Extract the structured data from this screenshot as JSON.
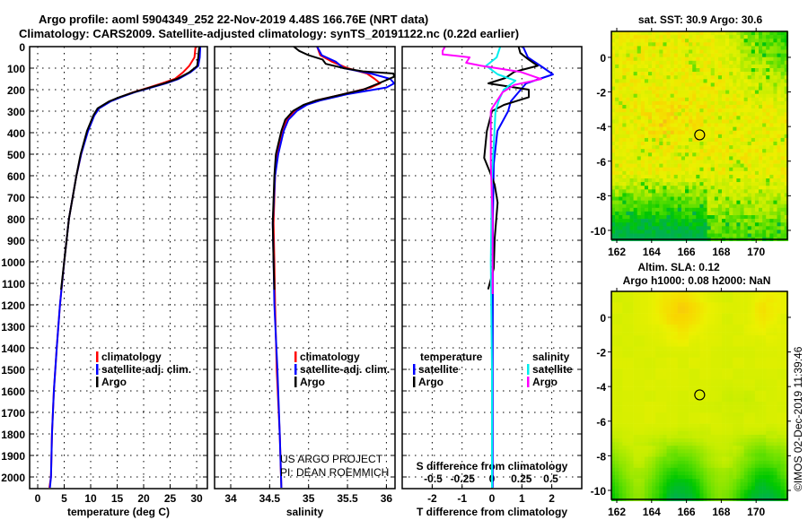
{
  "title": {
    "line1": "Argo profile: aoml 5904349_252 22-Nov-2019 4.48S 166.76E (NRT data)",
    "line2": "Climatology: CARS2009. Satellite-adjusted climatology: synTS_20191122.nc (0.22d earlier)"
  },
  "depth_ticks": [
    0,
    100,
    200,
    300,
    400,
    500,
    600,
    700,
    800,
    900,
    1000,
    1100,
    1200,
    1300,
    1400,
    1500,
    1600,
    1700,
    1800,
    1900,
    2000
  ],
  "credits": {
    "line1": "US ARGO PROJECT",
    "line2": "PI: DEAN ROEMMICH"
  },
  "timestamp": "©IMOS 02-Dec-2019 11:39:46",
  "colors": {
    "climatology": "#ff0000",
    "satellite": "#0000ff",
    "argo": "#000000",
    "sal_satellite": "#00eeee",
    "sal_argo": "#ff00ff"
  },
  "chart_data": [
    {
      "type": "line",
      "xlabel": "temperature (deg C)",
      "ylabel": "depth",
      "x_ticks": [
        0,
        5,
        10,
        15,
        20,
        25,
        30
      ],
      "xlim": [
        -1.5,
        32
      ],
      "ylim": [
        2055,
        0
      ],
      "grid": true,
      "legend_placement": "lower-right",
      "series": [
        {
          "name": "climatology",
          "color": "#ff0000",
          "depth": [
            0,
            50,
            90,
            120,
            150,
            170,
            190,
            212,
            235,
            254,
            287,
            320,
            392,
            500,
            600,
            800,
            1000,
            1200,
            1400,
            1600,
            1800,
            2000,
            2050
          ],
          "values": [
            29.8,
            29.6,
            28.6,
            27.4,
            25.9,
            23.5,
            21,
            18,
            15.5,
            13.6,
            11.4,
            10.6,
            9.4,
            8.2,
            7.3,
            5.9,
            5.0,
            4.2,
            3.6,
            3.05,
            2.7,
            2.5,
            2.2
          ]
        },
        {
          "name": "satellite-adj. clim.",
          "color": "#0000ff",
          "depth": [
            0,
            50,
            90,
            120,
            150,
            170,
            190,
            212,
            235,
            254,
            287,
            320,
            392,
            500,
            600,
            800,
            1000,
            1200,
            1400,
            1600,
            1800,
            2000,
            2050
          ],
          "values": [
            30.7,
            30.6,
            30.3,
            28.8,
            26.6,
            24.3,
            21.5,
            18.3,
            15.7,
            13.8,
            11.6,
            10.7,
            9.5,
            8.2,
            7.3,
            5.9,
            5.0,
            4.2,
            3.6,
            3.05,
            2.7,
            2.5,
            2.3
          ]
        },
        {
          "name": "Argo",
          "color": "#000000",
          "depth": [
            0,
            50,
            90,
            120,
            150,
            170,
            190,
            212,
            235,
            254,
            287,
            320,
            392,
            500,
            600,
            800,
            1000,
            1130
          ],
          "values": [
            30.5,
            30.3,
            30.1,
            28.6,
            26.3,
            24,
            21.2,
            18.1,
            15.4,
            13.5,
            11.3,
            10.5,
            9.3,
            8.1,
            7.3,
            5.9,
            5.0,
            4.4
          ]
        }
      ]
    },
    {
      "type": "line",
      "xlabel": "salinity",
      "ylabel": "depth",
      "x_ticks": [
        34,
        34.5,
        35,
        35.5,
        36
      ],
      "xlim": [
        33.8,
        36.1
      ],
      "ylim": [
        2055,
        0
      ],
      "grid": true,
      "legend_placement": "lower-right",
      "series": [
        {
          "name": "climatology",
          "color": "#ff0000",
          "depth": [
            0,
            40,
            70,
            100,
            125,
            150,
            171,
            190,
            221,
            250,
            270,
            299,
            340,
            392,
            500,
            600,
            820,
            1000,
            1200,
            1500,
            1800,
            2050
          ],
          "values": [
            35.11,
            35.15,
            35.3,
            35.5,
            35.75,
            35.85,
            35.92,
            35.8,
            35.45,
            35.1,
            34.95,
            34.82,
            34.72,
            34.67,
            34.6,
            34.57,
            34.55,
            34.56,
            34.57,
            34.59,
            34.63,
            34.65
          ]
        },
        {
          "name": "satellite-adj. clim.",
          "color": "#0000ff",
          "depth": [
            0,
            40,
            70,
            100,
            125,
            150,
            171,
            190,
            221,
            250,
            270,
            299,
            340,
            392,
            500,
            600,
            820,
            1000,
            1200,
            1500,
            1800,
            2050
          ],
          "values": [
            35.11,
            35.17,
            35.35,
            35.45,
            35.8,
            36.05,
            36.1,
            36.0,
            35.5,
            35.15,
            34.98,
            34.85,
            34.74,
            34.68,
            34.61,
            34.57,
            34.54,
            34.55,
            34.56,
            34.6,
            34.63,
            34.65
          ]
        },
        {
          "name": "Argo",
          "color": "#000000",
          "depth": [
            0,
            20,
            40,
            60,
            80,
            100,
            115,
            125,
            140,
            171,
            200,
            221,
            250,
            270,
            299,
            340,
            392,
            500,
            600,
            820,
            1000,
            1130
          ],
          "values": [
            34.81,
            34.88,
            35.0,
            35.18,
            35.22,
            35.45,
            35.7,
            36.09,
            36.1,
            35.9,
            35.7,
            35.45,
            35.1,
            34.94,
            34.8,
            34.7,
            34.65,
            34.58,
            34.56,
            34.54,
            34.55,
            34.56
          ]
        }
      ]
    },
    {
      "type": "line",
      "xlabel": "T difference from climatology",
      "x2label": "S difference from climatology",
      "ylabel": "depth",
      "x_ticks": [
        -2,
        -1,
        0,
        1,
        2
      ],
      "x2_ticks": [
        -0.5,
        -0.25,
        0,
        0.25,
        0.5
      ],
      "xlim": [
        -3,
        3
      ],
      "x2lim": [
        -0.5,
        0.75
      ],
      "ylim": [
        2055,
        0
      ],
      "grid": true,
      "legend_headers": {
        "temperature": "temperature",
        "salinity": "salinity"
      },
      "series": [
        {
          "name": "satellite",
          "group": "temperature",
          "axis": "T",
          "color": "#0000ff",
          "depth": [
            0,
            50,
            100,
            129,
            171,
            210,
            254,
            300,
            392,
            544,
            800,
            1100,
            1500,
            2050
          ],
          "values": [
            1.04,
            1.2,
            1.74,
            2.04,
            1.14,
            0.9,
            0.63,
            0.54,
            0.18,
            0.06,
            0.03,
            0.03,
            0.02,
            0.02
          ]
        },
        {
          "name": "Argo",
          "group": "temperature",
          "axis": "T",
          "color": "#000000",
          "depth": [
            0,
            30,
            61,
            89,
            117,
            146,
            171,
            200,
            235,
            271,
            300,
            392,
            517,
            586,
            642,
            725,
            892,
            1030,
            1128
          ],
          "values": [
            0.89,
            0.95,
            1.23,
            1.53,
            0.75,
            0.45,
            -0.12,
            1.23,
            1.23,
            0.4,
            0.0,
            -0.17,
            -0.26,
            -0.06,
            0.09,
            0.19,
            0.09,
            0.06,
            -0.13
          ]
        },
        {
          "name": "satellite",
          "group": "salinity",
          "axis": "S",
          "color": "#00eeee",
          "depth": [
            0,
            50,
            89,
            129,
            158,
            200,
            247,
            300,
            407,
            600,
            1000,
            1500,
            2050
          ],
          "values": [
            0.07,
            0.04,
            -0.05,
            0.05,
            0.2,
            0.1,
            0.06,
            0.03,
            0.02,
            0.0,
            -0.01,
            0.0,
            0.0
          ]
        },
        {
          "name": "Argo",
          "group": "salinity",
          "axis": "S",
          "color": "#ff00ff",
          "depth": [
            0,
            20,
            36,
            50,
            75,
            89,
            117,
            151,
            178,
            212,
            287,
            300,
            544,
            800,
            1150
          ],
          "values": [
            -0.4,
            -0.42,
            -0.42,
            -0.19,
            -0.22,
            -0.09,
            0.24,
            0.42,
            0.19,
            0.09,
            0.0,
            -0.01,
            -0.01,
            0.005,
            0.005
          ]
        }
      ]
    }
  ],
  "maps": [
    {
      "title": "sat. SST: 30.9 Argo: 30.6",
      "lon_ticks": [
        162,
        164,
        166,
        168,
        170
      ],
      "lat_ticks": [
        0,
        -2,
        -4,
        -6,
        -8,
        -10
      ],
      "lon_range": [
        161.7,
        171.8
      ],
      "lat_range": [
        -10.5,
        1.5
      ],
      "argo_position": {
        "lon": 166.76,
        "lat": -4.48
      }
    },
    {
      "title": "Altim. SLA: 0.12",
      "subtitle": "Argo h1000: 0.08 h2000: NaN",
      "lon_ticks": [
        162,
        164,
        166,
        168,
        170
      ],
      "lat_ticks": [
        0,
        -2,
        -4,
        -6,
        -8,
        -10
      ],
      "lon_range": [
        161.7,
        171.8
      ],
      "lat_range": [
        -10.5,
        1.5
      ],
      "argo_position": {
        "lon": 166.76,
        "lat": -4.48
      }
    }
  ]
}
